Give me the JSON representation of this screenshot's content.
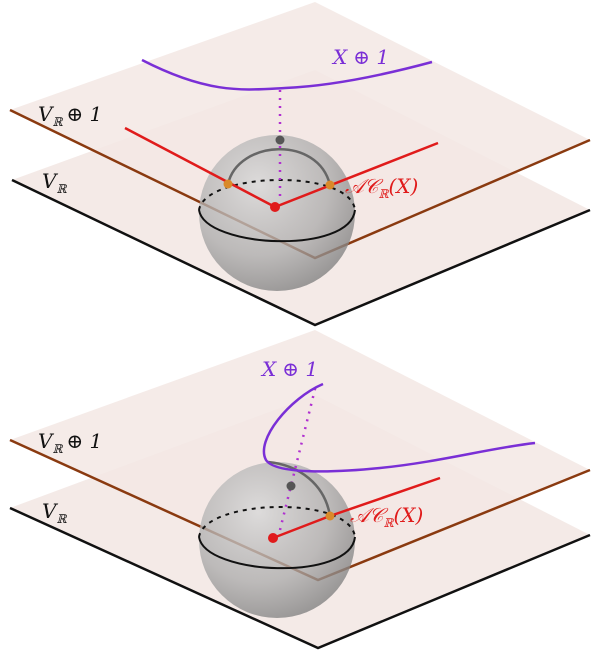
{
  "panels": [
    {
      "label_plane_top": "V",
      "label_plane_top_sub": "ℝ",
      "label_plane_top_suffix": "⊕ 1",
      "label_plane_bottom": "V",
      "label_plane_bottom_sub": "ℝ",
      "label_curve": "X",
      "label_curve_suffix": "⊕ 1",
      "label_cone_a": "𝒜𝒞",
      "label_cone_sub": "ℝ",
      "label_cone_arg": "(X)"
    },
    {
      "label_plane_top": "V",
      "label_plane_top_sub": "ℝ",
      "label_plane_top_suffix": "⊕ 1",
      "label_plane_bottom": "V",
      "label_plane_bottom_sub": "ℝ",
      "label_curve": "X",
      "label_curve_suffix": "⊕ 1",
      "label_cone_a": "𝒜𝒞",
      "label_cone_sub": "ℝ",
      "label_cone_arg": "(X)"
    }
  ],
  "colors": {
    "curve": "#7a2fd6",
    "cone": "#e01b1b",
    "upper_edge": "#8a3a10",
    "lower_edge": "#111111",
    "plane_fill": "#f3e8e4",
    "sphere_fill": "#9a9a9a",
    "point_orange": "#d98a2a",
    "point_gray": "#555555"
  }
}
